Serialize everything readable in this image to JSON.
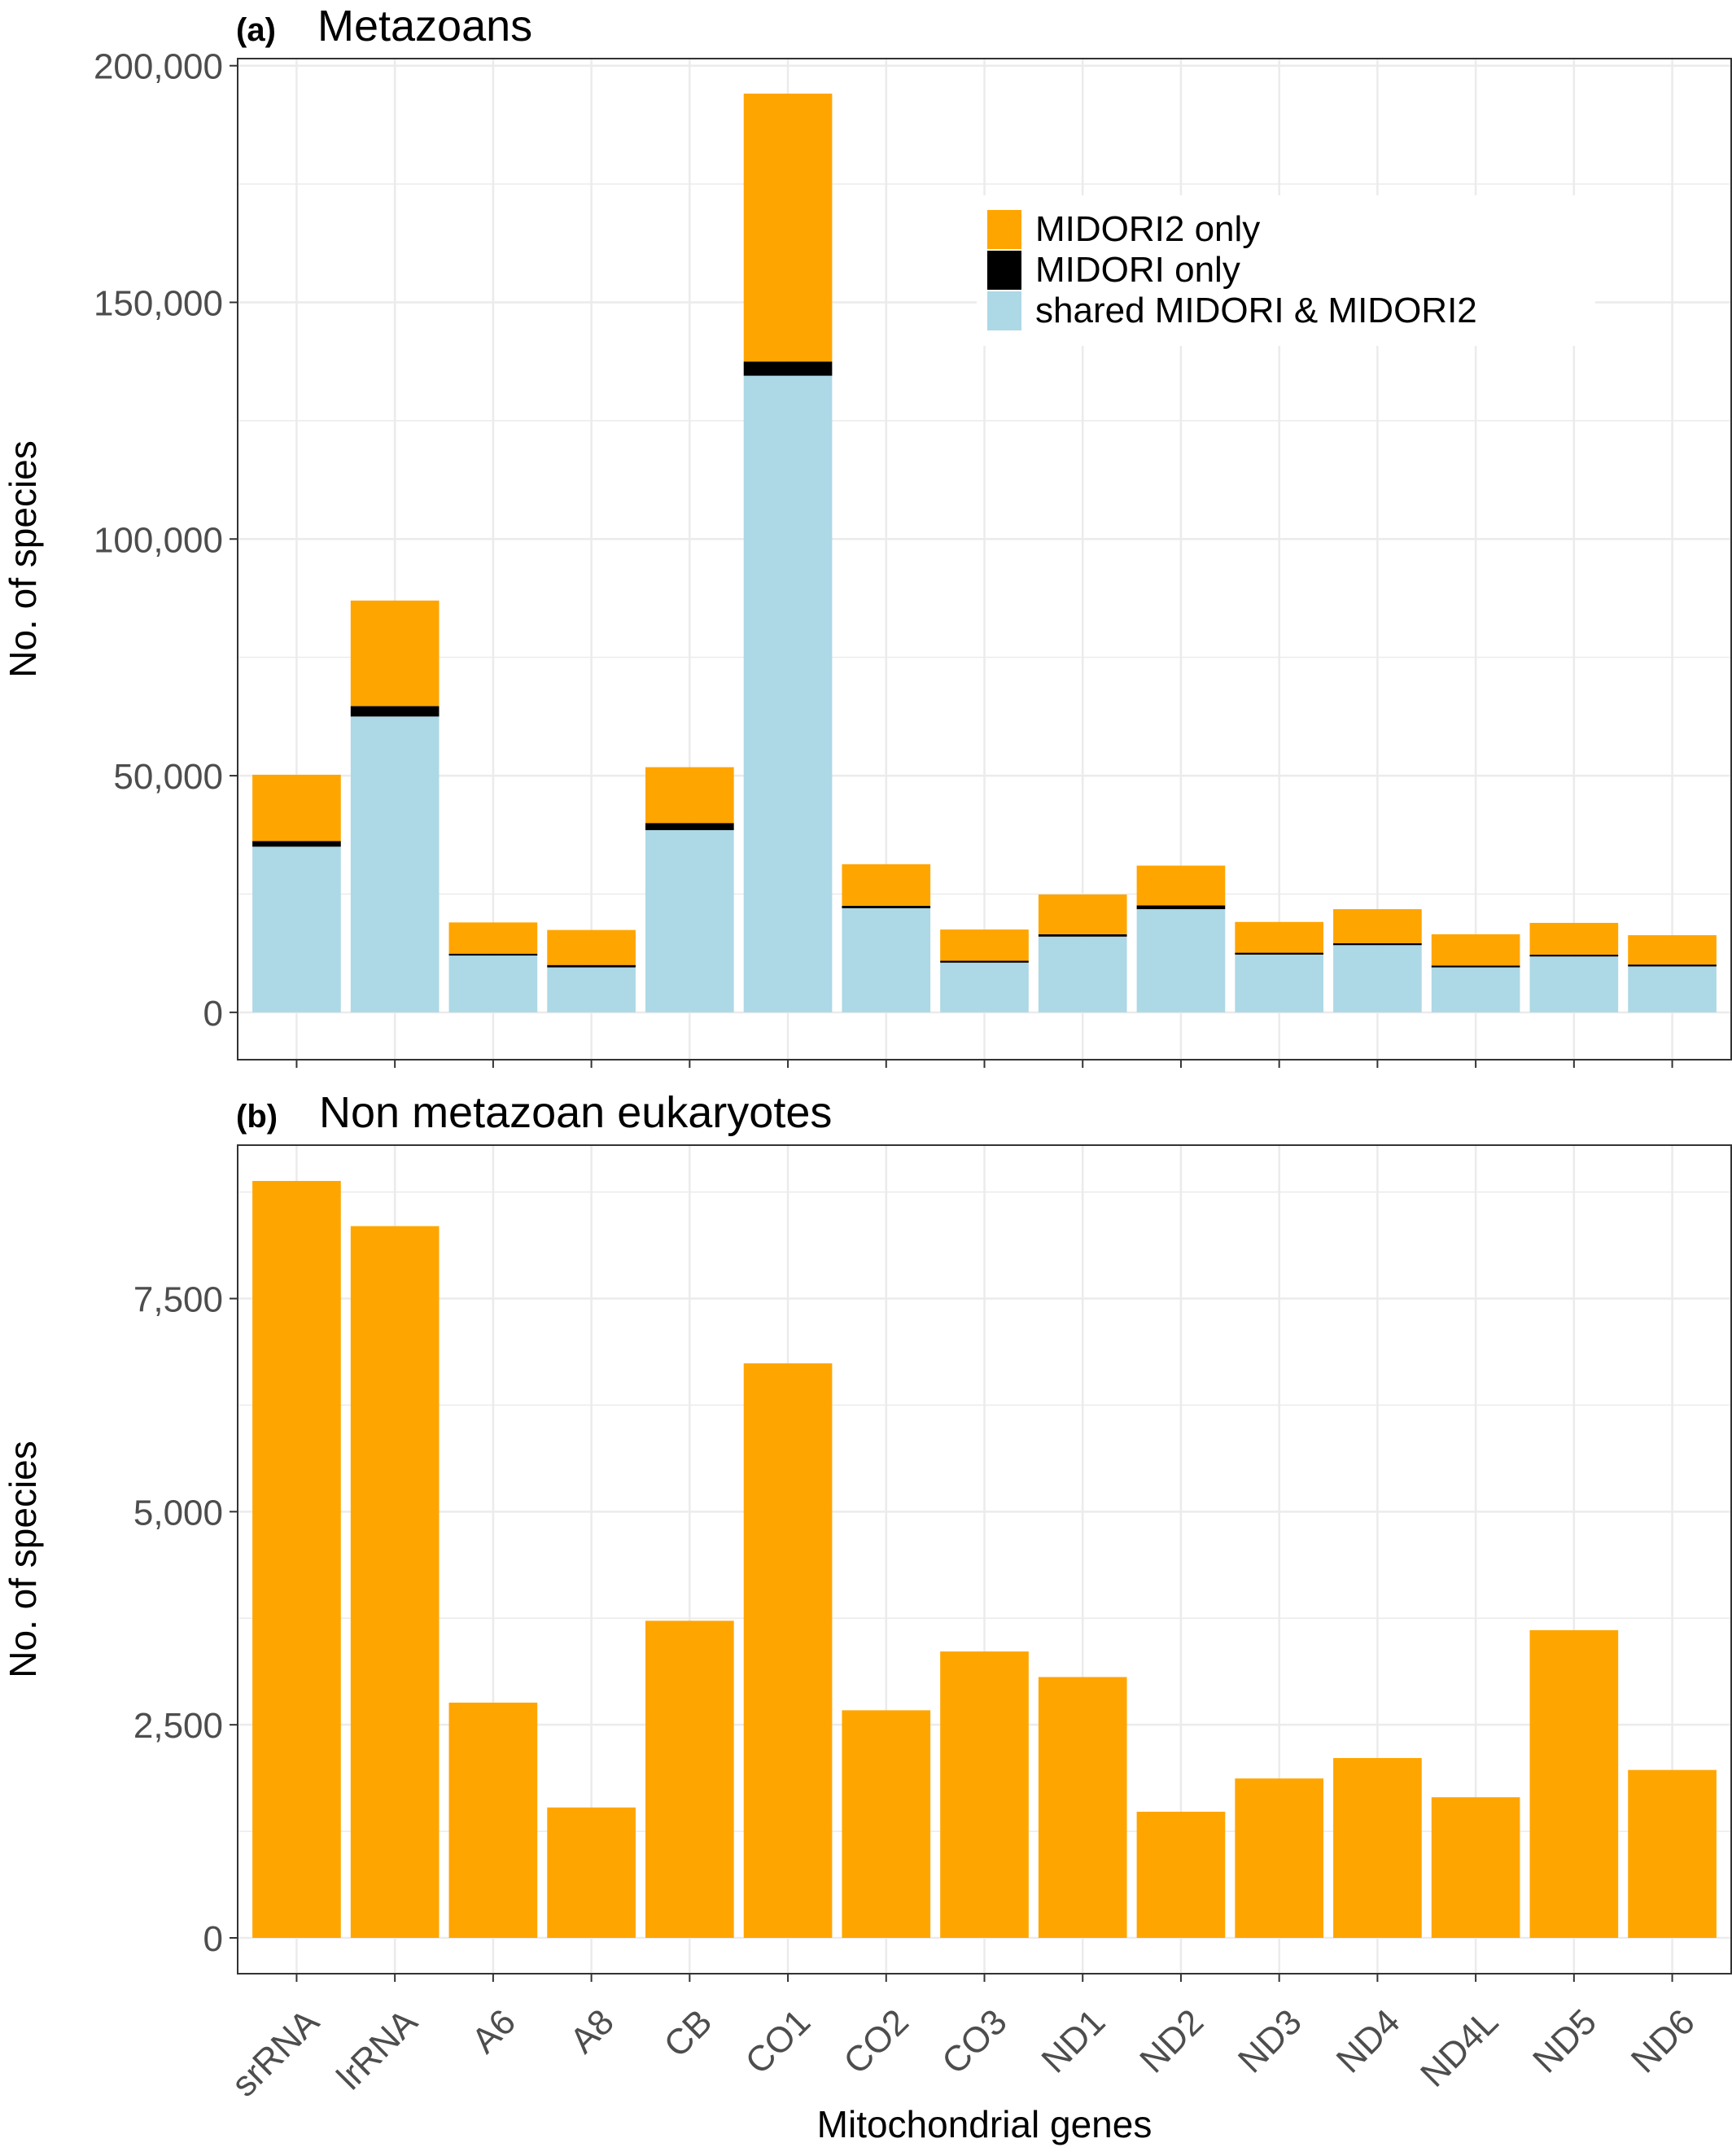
{
  "chart_data": [
    {
      "type": "bar",
      "stacked": true,
      "tag": "(a)",
      "title": "Metazoans",
      "xlabel": "",
      "ylabel": "No. of species",
      "ylim": [
        -10000,
        201500
      ],
      "yticks": [
        0,
        50000,
        100000,
        150000,
        200000
      ],
      "ytick_labels": [
        "0",
        "50,000",
        "100,000",
        "150,000",
        "200,000"
      ],
      "grid": true,
      "legend_position": "top-right",
      "categories": [
        "srRNA",
        "lrRNA",
        "A6",
        "A8",
        "CB",
        "CO1",
        "CO2",
        "CO3",
        "ND1",
        "ND2",
        "ND3",
        "ND4",
        "ND4L",
        "ND5",
        "ND6"
      ],
      "series": [
        {
          "name": "shared MIDORI & MIDORI2",
          "color": "#add8e6",
          "values": [
            35000,
            62500,
            12000,
            9500,
            38500,
            134500,
            22000,
            10500,
            16000,
            21800,
            12200,
            14200,
            9500,
            11800,
            9700
          ]
        },
        {
          "name": "MIDORI only",
          "color": "#000000",
          "values": [
            1200,
            2200,
            400,
            500,
            1500,
            3000,
            500,
            400,
            500,
            800,
            400,
            400,
            400,
            400,
            400
          ]
        },
        {
          "name": "MIDORI2 only",
          "color": "#ffa500",
          "values": [
            14000,
            22300,
            6600,
            7400,
            11800,
            56600,
            8800,
            6600,
            8400,
            8400,
            6500,
            7200,
            6600,
            6700,
            6200
          ]
        }
      ],
      "legend_order": [
        "MIDORI2 only",
        "MIDORI only",
        "shared MIDORI & MIDORI2"
      ]
    },
    {
      "type": "bar",
      "tag": "(b)",
      "title": "Non metazoan eukaryotes",
      "xlabel": "Mitochondrial genes",
      "ylabel": "No. of species",
      "ylim": [
        -420,
        9300
      ],
      "yticks": [
        0,
        2500,
        5000,
        7500
      ],
      "ytick_labels": [
        "0",
        "2,500",
        "5,000",
        "7,500"
      ],
      "grid": true,
      "categories": [
        "srRNA",
        "lrRNA",
        "A6",
        "A8",
        "CB",
        "CO1",
        "CO2",
        "CO3",
        "ND1",
        "ND2",
        "ND3",
        "ND4",
        "ND4L",
        "ND5",
        "ND6"
      ],
      "series": [
        {
          "name": "",
          "color": "#ffa500",
          "values": [
            8880,
            8350,
            2760,
            1530,
            3720,
            6740,
            2670,
            3360,
            3060,
            1480,
            1870,
            2110,
            1650,
            3610,
            1970
          ]
        }
      ]
    }
  ]
}
